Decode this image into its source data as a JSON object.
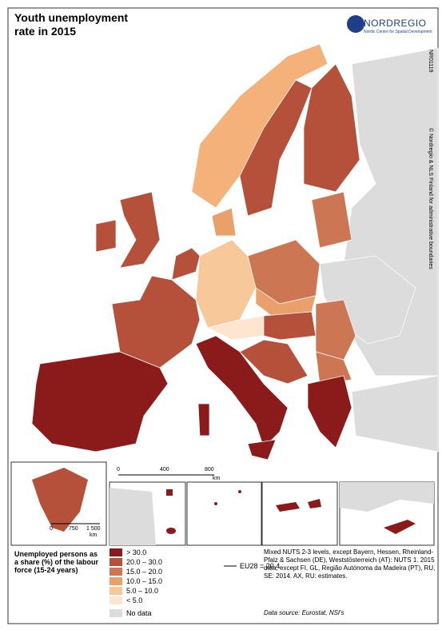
{
  "header": {
    "title": "Youth unemployment rate in 2015",
    "logo": {
      "name": "NORDREGIO",
      "subtitle": "Nordic Centre for Spatial Development"
    }
  },
  "map_id": "NR01119",
  "copyright": "© Nordregio & NLS Finland for administrative boundaries",
  "scale_bar": {
    "ticks": [
      "0",
      "400",
      "800"
    ],
    "unit": "km"
  },
  "inset_scale_bar": {
    "ticks": [
      "0",
      "750",
      "1 500"
    ],
    "unit": "km"
  },
  "legend": {
    "title": "Unemployed persons as a share (%) of the labour force (15-24 years)",
    "classes": [
      {
        "label": "> 30.0",
        "color": "#8b1a1a"
      },
      {
        "label": "20.0 – 30.0",
        "color": "#b5503a"
      },
      {
        "label": "15.0 – 20.0",
        "color": "#cc7653"
      },
      {
        "label": "10.0 – 15.0",
        "color": "#e9a06a"
      },
      {
        "label": "5.0 – 10.0",
        "color": "#f6c89a"
      },
      {
        "label": "< 5.0",
        "color": "#fde5d0"
      },
      {
        "label": "No data",
        "color": "#dcdcdc"
      }
    ],
    "eu_average": "EU28 = 20.4"
  },
  "notes": "Mixed NUTS 2-3 levels, except Bayern, Hessen, Rheinland-Pfalz & Sachsen (DE), Weststösterreich (AT): NUTS 1. 2015 data, except FI, GL, Região Autónoma da Madeira (PT), RU, SE: 2014. AX, RU: estimates.",
  "source": "Data source: Eurostat, NSI's"
}
